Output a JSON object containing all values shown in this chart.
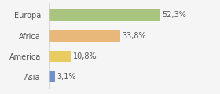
{
  "categories": [
    "Europa",
    "Africa",
    "America",
    "Asia"
  ],
  "values": [
    52.3,
    33.8,
    10.8,
    3.1
  ],
  "labels": [
    "52,3%",
    "33,8%",
    "10,8%",
    "3,1%"
  ],
  "bar_colors": [
    "#a8c47e",
    "#e8b87a",
    "#e8cc60",
    "#7090c8"
  ],
  "background_color": "#f5f5f5",
  "xlim": [
    0,
    68
  ],
  "label_fontsize": 7,
  "tick_fontsize": 7,
  "bar_height": 0.55
}
